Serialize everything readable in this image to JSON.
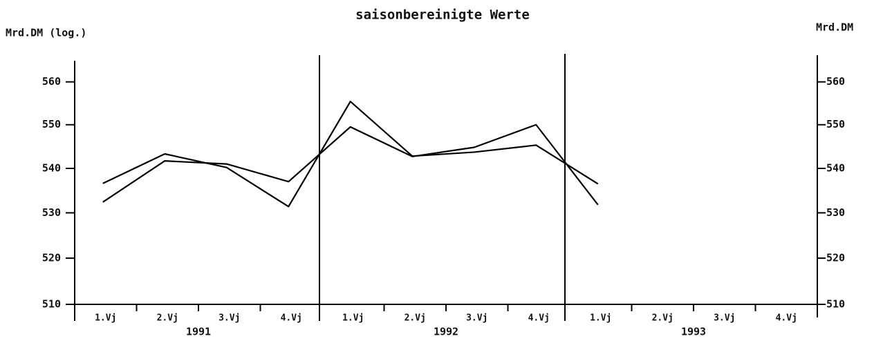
{
  "chart_data": {
    "type": "line",
    "title": "saisonbereinigte Werte",
    "y_label": "Mrd.DM (log.)",
    "y2_label": "Mrd.DM",
    "log_scale": true,
    "grid": false,
    "categories": [
      "1.Vj",
      "2.Vj",
      "3.Vj",
      "4.Vj",
      "1.Vj",
      "2.Vj",
      "3.Vj",
      "4.Vj",
      "1.Vj",
      "2.Vj",
      "3.Vj",
      "4.Vj"
    ],
    "years": [
      "1991",
      "1992",
      "1993"
    ],
    "series": [
      {
        "color": "#000000",
        "values": [
          532.4,
          541.7,
          541,
          537,
          549.5,
          542.7,
          544.8,
          550,
          531.8,
          null,
          null,
          null
        ]
      },
      {
        "color": "#000000",
        "values": [
          536.6,
          543.3,
          540.2,
          531.4,
          555.4,
          542.8,
          543.7,
          545.3,
          536.5,
          null,
          null,
          null
        ]
      }
    ],
    "ylim": [
      510,
      565
    ],
    "yticks": [
      510,
      520,
      530,
      540,
      550,
      560
    ],
    "y2lim": [
      510,
      565
    ],
    "y2ticks": [
      510,
      520,
      530,
      540,
      550,
      560
    ]
  }
}
